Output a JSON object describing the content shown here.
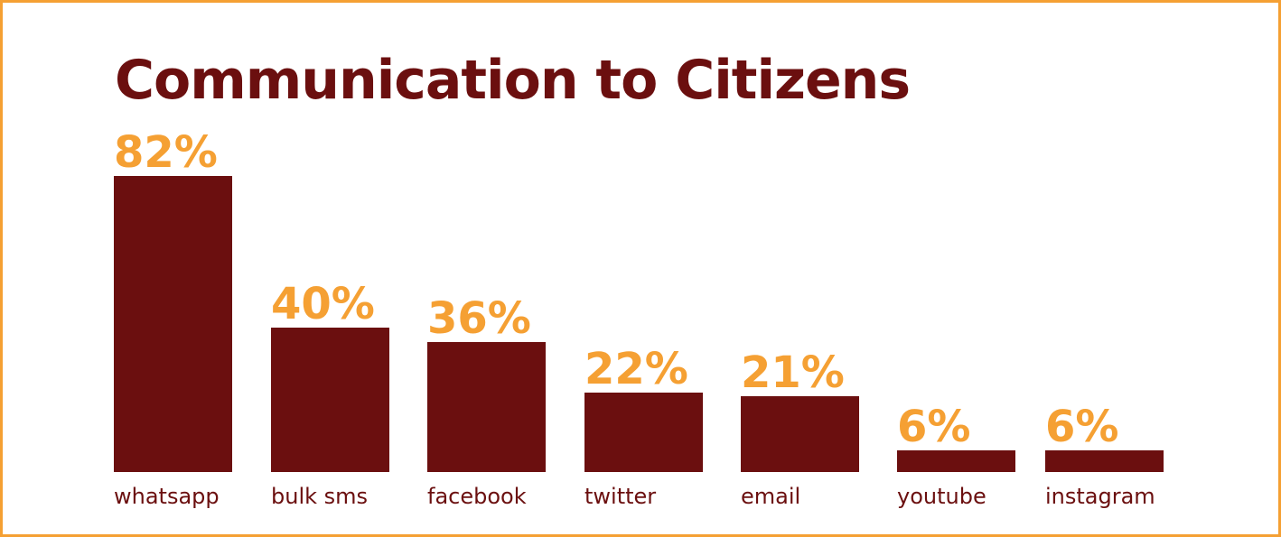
{
  "chart_data": {
    "type": "bar",
    "title": "Communication to Citizens",
    "categories": [
      "whatsapp",
      "bulk sms",
      "facebook",
      "twitter",
      "email",
      "youtube",
      "instagram"
    ],
    "values": [
      82,
      40,
      36,
      22,
      21,
      6,
      6
    ],
    "value_labels": [
      "82%",
      "40%",
      "36%",
      "22%",
      "21%",
      "6%",
      "6%"
    ],
    "unit": "%",
    "xlabel": "",
    "ylabel": "",
    "grid": false,
    "legend": "none"
  },
  "colors": {
    "bar": "#6b0f0f",
    "value_label": "#f5a033",
    "title": "#6b0f0f",
    "category_label": "#6b0f0f",
    "border": "#f5a033"
  }
}
